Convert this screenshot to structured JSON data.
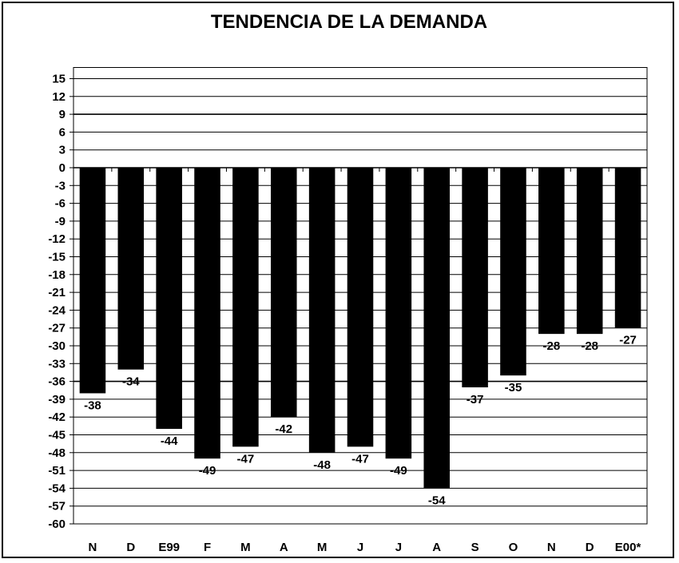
{
  "chart_data": {
    "type": "bar",
    "title": "TENDENCIA DE LA DEMANDA",
    "xlabel": "",
    "ylabel": "",
    "categories": [
      "N",
      "D",
      "E99",
      "F",
      "M",
      "A",
      "M",
      "J",
      "J",
      "A",
      "S",
      "O",
      "N",
      "D",
      "E00*"
    ],
    "values": [
      -38,
      -34,
      -44,
      -49,
      -47,
      -42,
      -48,
      -47,
      -49,
      -54,
      -37,
      -35,
      -28,
      -28,
      -27
    ],
    "ylim": [
      -60,
      15
    ],
    "yticks": [
      15,
      12,
      9,
      6,
      3,
      0,
      -3,
      -6,
      -9,
      -12,
      -15,
      -18,
      -21,
      -24,
      -27,
      -30,
      -33,
      -36,
      -39,
      -42,
      -45,
      -48,
      -51,
      -54,
      -57,
      -60
    ],
    "grid": true,
    "legend": "none",
    "bar_color": "#000000",
    "background": "#ffffff"
  }
}
